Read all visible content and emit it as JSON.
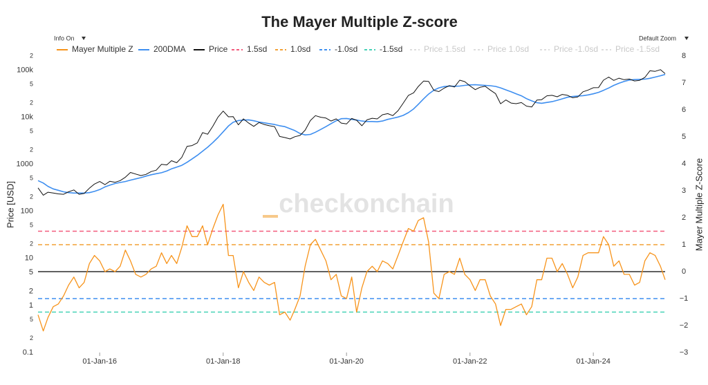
{
  "chart_data": {
    "type": "line",
    "title": "The Mayer Multiple Z-score",
    "info_label": "Info On",
    "zoom_label": "Default Zoom",
    "watermark": "checkonchain",
    "y_label": "Price [USD]",
    "y2_label": "Mayer Multiple Z-Score",
    "y_log": true,
    "grid": false,
    "legend_position": "top",
    "xlim": [
      "2015-01-01",
      "2025-03-01"
    ],
    "xticks": [
      {
        "value": "2016-01-01",
        "label": "01-Jan-16"
      },
      {
        "value": "2018-01-01",
        "label": "01-Jan-18"
      },
      {
        "value": "2020-01-01",
        "label": "01-Jan-20"
      },
      {
        "value": "2022-01-01",
        "label": "01-Jan-22"
      },
      {
        "value": "2024-01-01",
        "label": "01-Jan-24"
      }
    ],
    "ylim": [
      0.1,
      200000
    ],
    "yticks": [
      0.1,
      {
        "value": 0.2,
        "label": "2"
      },
      {
        "value": 0.5,
        "label": "5"
      },
      1,
      2,
      5,
      10,
      {
        "value": 20,
        "label": "2"
      },
      {
        "value": 50,
        "label": "5"
      },
      100,
      {
        "value": 200,
        "label": "2"
      },
      {
        "value": 500,
        "label": "5"
      },
      1000,
      {
        "value": 2000,
        "label": "2"
      },
      {
        "value": 5000,
        "label": "5"
      },
      {
        "value": 10000,
        "label": "10k"
      },
      {
        "value": 20000,
        "label": "2"
      },
      {
        "value": 50000,
        "label": "5"
      },
      {
        "value": 100000,
        "label": "100k"
      },
      {
        "value": 200000,
        "label": "2"
      }
    ],
    "y2lim": [
      -3,
      8
    ],
    "y2ticks": [
      {
        "value": -3,
        "label": "−3"
      },
      {
        "value": -2,
        "label": "−2"
      },
      {
        "value": -1,
        "label": "−1"
      },
      0,
      1,
      2,
      3,
      4,
      5,
      6,
      7,
      8
    ],
    "y2_baseline": {
      "value": 0,
      "color": "#000000"
    },
    "x": [
      "2015-01-01",
      "2015-02-01",
      "2015-03-01",
      "2015-04-01",
      "2015-05-01",
      "2015-06-01",
      "2015-07-01",
      "2015-08-01",
      "2015-09-01",
      "2015-10-01",
      "2015-11-01",
      "2015-12-01",
      "2016-01-01",
      "2016-02-01",
      "2016-03-01",
      "2016-04-01",
      "2016-05-01",
      "2016-06-01",
      "2016-07-01",
      "2016-08-01",
      "2016-09-01",
      "2016-10-01",
      "2016-11-01",
      "2016-12-01",
      "2017-01-01",
      "2017-02-01",
      "2017-03-01",
      "2017-04-01",
      "2017-05-01",
      "2017-06-01",
      "2017-07-01",
      "2017-08-01",
      "2017-09-01",
      "2017-10-01",
      "2017-11-01",
      "2017-12-01",
      "2018-01-01",
      "2018-02-01",
      "2018-03-01",
      "2018-04-01",
      "2018-05-01",
      "2018-06-01",
      "2018-07-01",
      "2018-08-01",
      "2018-09-01",
      "2018-10-01",
      "2018-11-01",
      "2018-12-01",
      "2019-01-01",
      "2019-02-01",
      "2019-03-01",
      "2019-04-01",
      "2019-05-01",
      "2019-06-01",
      "2019-07-01",
      "2019-08-01",
      "2019-09-01",
      "2019-10-01",
      "2019-11-01",
      "2019-12-01",
      "2020-01-01",
      "2020-02-01",
      "2020-03-01",
      "2020-04-01",
      "2020-05-01",
      "2020-06-01",
      "2020-07-01",
      "2020-08-01",
      "2020-09-01",
      "2020-10-01",
      "2020-11-01",
      "2020-12-01",
      "2021-01-01",
      "2021-02-01",
      "2021-03-01",
      "2021-04-01",
      "2021-05-01",
      "2021-06-01",
      "2021-07-01",
      "2021-08-01",
      "2021-09-01",
      "2021-10-01",
      "2021-11-01",
      "2021-12-01",
      "2022-01-01",
      "2022-02-01",
      "2022-03-01",
      "2022-04-01",
      "2022-05-01",
      "2022-06-01",
      "2022-07-01",
      "2022-08-01",
      "2022-09-01",
      "2022-10-01",
      "2022-11-01",
      "2022-12-01",
      "2023-01-01",
      "2023-02-01",
      "2023-03-01",
      "2023-04-01",
      "2023-05-01",
      "2023-06-01",
      "2023-07-01",
      "2023-08-01",
      "2023-09-01",
      "2023-10-01",
      "2023-11-01",
      "2023-12-01",
      "2024-01-01",
      "2024-02-01",
      "2024-03-01",
      "2024-04-01",
      "2024-05-01",
      "2024-06-01",
      "2024-07-01",
      "2024-08-01",
      "2024-09-01",
      "2024-10-01",
      "2024-11-01",
      "2024-12-01",
      "2025-01-01",
      "2025-02-01",
      "2025-03-01"
    ],
    "series": [
      {
        "name": "Mayer Multiple Z",
        "color": "#f7931a",
        "axis": "y2",
        "values": [
          -1.6,
          -2.2,
          -1.7,
          -1.3,
          -1.2,
          -0.9,
          -0.5,
          -0.2,
          -0.6,
          -0.4,
          0.3,
          0.6,
          0.4,
          0.0,
          0.1,
          0.0,
          0.2,
          0.8,
          0.4,
          -0.1,
          -0.2,
          -0.1,
          0.1,
          0.2,
          0.7,
          0.3,
          0.6,
          0.3,
          0.9,
          1.7,
          1.3,
          1.3,
          1.7,
          1.0,
          1.6,
          2.1,
          2.5,
          0.6,
          0.6,
          -0.6,
          0.0,
          -0.4,
          -0.7,
          -0.2,
          -0.4,
          -0.5,
          -0.4,
          -1.6,
          -1.5,
          -1.8,
          -1.4,
          -0.9,
          0.2,
          1.0,
          1.2,
          0.8,
          0.4,
          -0.3,
          -0.1,
          -0.9,
          -1.0,
          -0.2,
          -1.5,
          -0.6,
          0.0,
          0.2,
          0.0,
          0.4,
          0.3,
          0.1,
          0.6,
          1.1,
          1.6,
          1.5,
          1.9,
          2.0,
          1.1,
          -0.8,
          -1.0,
          -0.1,
          0.0,
          -0.1,
          0.5,
          -0.1,
          -0.3,
          -0.7,
          -0.3,
          -0.3,
          -0.9,
          -1.2,
          -2.0,
          -1.4,
          -1.4,
          -1.3,
          -1.2,
          -1.6,
          -1.3,
          -0.3,
          -0.3,
          0.5,
          0.5,
          0.0,
          0.3,
          -0.1,
          -0.6,
          -0.2,
          0.6,
          0.7,
          0.7,
          0.7,
          1.3,
          1.0,
          0.2,
          0.4,
          -0.1,
          -0.1,
          -0.5,
          -0.4,
          0.4,
          0.7,
          0.6,
          0.2,
          -0.3
        ]
      },
      {
        "name": "200DMA",
        "color": "#3d8ef0",
        "values": [
          450,
          400,
          340,
          300,
          280,
          260,
          250,
          245,
          245,
          245,
          250,
          265,
          290,
          330,
          360,
          390,
          410,
          430,
          460,
          490,
          520,
          560,
          600,
          630,
          660,
          720,
          800,
          870,
          950,
          1100,
          1300,
          1550,
          1900,
          2300,
          2900,
          3700,
          4900,
          6500,
          7800,
          8500,
          8700,
          8800,
          8400,
          7900,
          7600,
          7300,
          7000,
          6600,
          6300,
          5700,
          5200,
          4500,
          4200,
          4300,
          4800,
          5500,
          6300,
          7300,
          8400,
          9300,
          9400,
          9000,
          8700,
          8300,
          8100,
          8100,
          8000,
          8300,
          9000,
          9500,
          10100,
          10900,
          12500,
          15000,
          18800,
          24500,
          31000,
          37500,
          42000,
          44800,
          45800,
          45500,
          46000,
          47500,
          48700,
          49000,
          48200,
          47400,
          46700,
          45200,
          42000,
          38200,
          34700,
          31500,
          28500,
          24800,
          22300,
          20300,
          19800,
          20600,
          21400,
          22900,
          24600,
          26600,
          27600,
          28200,
          28700,
          29800,
          31500,
          33800,
          37200,
          41800,
          47500,
          52700,
          57500,
          61600,
          63100,
          63800,
          64500,
          67100,
          71200,
          76000,
          81000
        ]
      },
      {
        "name": "Price",
        "color": "#111111",
        "values": [
          315,
          220,
          255,
          245,
          235,
          230,
          260,
          285,
          230,
          240,
          310,
          380,
          430,
          370,
          435,
          415,
          450,
          530,
          670,
          620,
          575,
          610,
          700,
          750,
          1000,
          970,
          1190,
          1080,
          1400,
          2400,
          2500,
          2850,
          4700,
          4350,
          6450,
          10000,
          13500,
          10200,
          10300,
          6900,
          9200,
          7500,
          6400,
          7700,
          7000,
          6600,
          6300,
          3900,
          3700,
          3450,
          3850,
          4100,
          5300,
          8500,
          10800,
          10000,
          9600,
          8300,
          9200,
          7500,
          7200,
          9400,
          8600,
          6600,
          8800,
          9500,
          9200,
          11300,
          11900,
          10800,
          13800,
          19700,
          29000,
          33000,
          45000,
          58500,
          57700,
          37300,
          35000,
          41500,
          47100,
          43800,
          61300,
          57000,
          46300,
          38500,
          43200,
          45500,
          37700,
          31800,
          19300,
          23300,
          20000,
          19400,
          20500,
          17200,
          16500,
          23100,
          23600,
          28500,
          29200,
          27200,
          30500,
          29200,
          25900,
          27000,
          34700,
          37700,
          42300,
          42600,
          61200,
          71300,
          60600,
          67500,
          62700,
          64600,
          59000,
          60800,
          70200,
          97000,
          94400,
          102400,
          84400
        ]
      }
    ],
    "reference_lines": [
      {
        "name": "1.5sd",
        "value": 1.5,
        "color": "#f25b7c",
        "axis": "y2"
      },
      {
        "name": "1.0sd",
        "value": 1.0,
        "color": "#f2a033",
        "axis": "y2"
      },
      {
        "name": "-1.0sd",
        "value": -1.0,
        "color": "#3d8ef0",
        "axis": "y2"
      },
      {
        "name": "-1.5sd",
        "value": -1.5,
        "color": "#45d1b6",
        "axis": "y2"
      }
    ],
    "legend_hidden": [
      "Price 1.5sd",
      "Price 1.0sd",
      "Price -1.0sd",
      "Price -1.5sd"
    ]
  }
}
